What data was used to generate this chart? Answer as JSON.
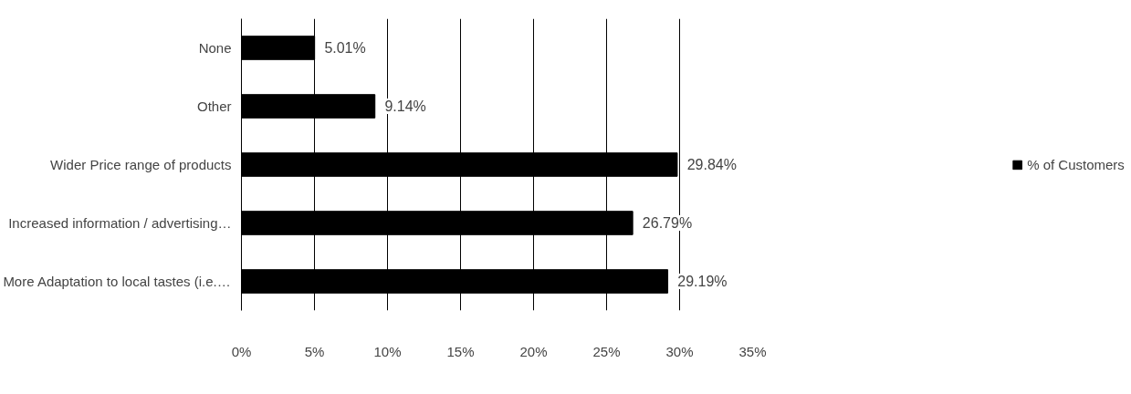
{
  "chart_data": {
    "type": "bar",
    "orientation": "horizontal",
    "categories": [
      "None",
      "Other",
      "Wider Price range of products",
      "Increased information / advertising…",
      "More Adaptation to local tastes (i.e.…"
    ],
    "series": [
      {
        "name": "% of Customers",
        "color": "#000000",
        "values": [
          5.01,
          9.14,
          29.84,
          26.79,
          29.19
        ],
        "value_labels": [
          "5.01%",
          "9.14%",
          "29.84%",
          "26.79%",
          "29.19%"
        ]
      }
    ],
    "xlim": [
      0,
      35
    ],
    "xticks": [
      {
        "value": 0,
        "label": "0%"
      },
      {
        "value": 5,
        "label": "5%"
      },
      {
        "value": 10,
        "label": "10%"
      },
      {
        "value": 15,
        "label": "15%"
      },
      {
        "value": 20,
        "label": "20%"
      },
      {
        "value": 25,
        "label": "25%"
      },
      {
        "value": 30,
        "label": "30%"
      },
      {
        "value": 35,
        "label": "35%"
      }
    ],
    "grid": "x",
    "legend": "right"
  }
}
